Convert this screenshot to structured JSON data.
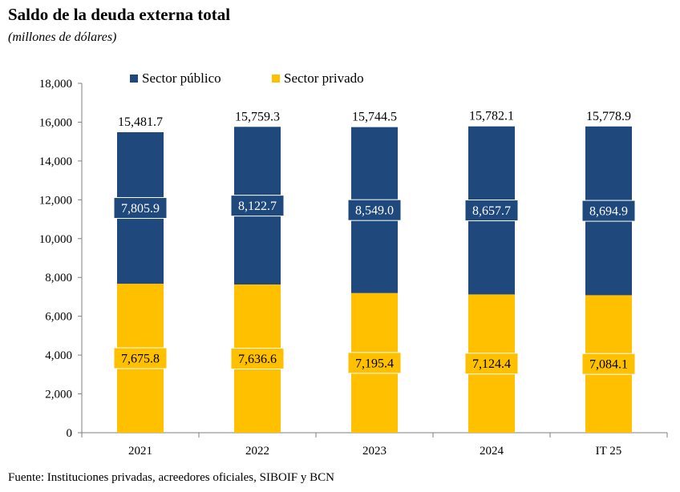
{
  "title": "Saldo de la deuda externa total",
  "subtitle": "(millones de dólares)",
  "source": "Fuente: Instituciones privadas, acreedores oficiales, SIBOIF y BCN",
  "chart_data": {
    "type": "bar",
    "stacked": true,
    "categories": [
      "2021",
      "2022",
      "2023",
      "2024",
      "IT 25"
    ],
    "series": [
      {
        "name": "Sector privado",
        "color": "#FFC000",
        "values": [
          7675.8,
          7636.6,
          7195.4,
          7124.4,
          7084.1
        ],
        "labels": [
          "7,675.8",
          "7,636.6",
          "7,195.4",
          "7,124.4",
          "7,084.1"
        ]
      },
      {
        "name": "Sector público",
        "color": "#1F497D",
        "values": [
          7805.9,
          8122.7,
          8549.0,
          8657.7,
          8694.9
        ],
        "labels": [
          "7,805.9",
          "8,122.7",
          "8,549.0",
          "8,657.7",
          "8,694.9"
        ]
      }
    ],
    "totals": [
      15481.7,
      15759.3,
      15744.5,
      15782.1,
      15778.9
    ],
    "total_labels": [
      "15,481.7",
      "15,759.3",
      "15,744.5",
      "15,782.1",
      "15,778.9"
    ],
    "ylim": [
      0,
      18000
    ],
    "yticks": [
      0,
      2000,
      4000,
      6000,
      8000,
      10000,
      12000,
      14000,
      16000,
      18000
    ],
    "ytick_labels": [
      "0",
      "2,000",
      "4,000",
      "6,000",
      "8,000",
      "10,000",
      "12,000",
      "14,000",
      "16,000",
      "18,000"
    ],
    "legend": [
      "Sector público",
      "Sector privado"
    ],
    "legend_position": "top",
    "grid": false
  }
}
